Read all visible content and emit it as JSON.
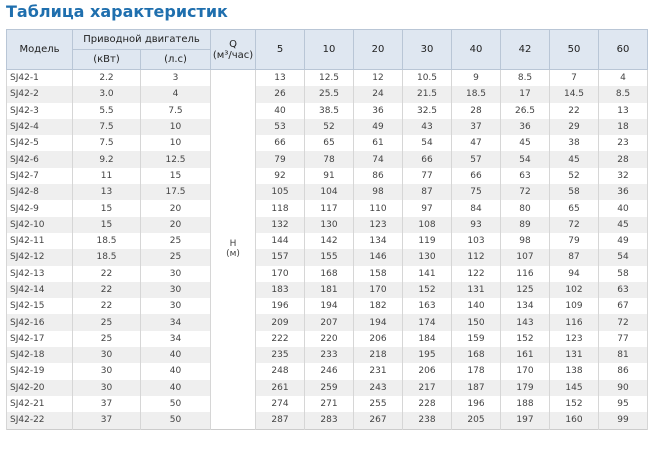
{
  "title": "Таблица характеристик",
  "table": {
    "header": {
      "model": "Модель",
      "motor": "Приводной двигатель",
      "kw": "(кВт)",
      "hp": "(л.с)",
      "q": "Q",
      "q_unit": "(м³/час)",
      "flows": [
        "5",
        "10",
        "20",
        "30",
        "40",
        "42",
        "50",
        "60"
      ]
    },
    "h_label": "H",
    "h_unit": "(м)",
    "rows": [
      [
        "SJ42-1",
        "2.2",
        "3",
        "13",
        "12.5",
        "12",
        "10.5",
        "9",
        "8.5",
        "7",
        "4"
      ],
      [
        "SJ42-2",
        "3.0",
        "4",
        "26",
        "25.5",
        "24",
        "21.5",
        "18.5",
        "17",
        "14.5",
        "8.5"
      ],
      [
        "SJ42-3",
        "5.5",
        "7.5",
        "40",
        "38.5",
        "36",
        "32.5",
        "28",
        "26.5",
        "22",
        "13"
      ],
      [
        "SJ42-4",
        "7.5",
        "10",
        "53",
        "52",
        "49",
        "43",
        "37",
        "36",
        "29",
        "18"
      ],
      [
        "SJ42-5",
        "7.5",
        "10",
        "66",
        "65",
        "61",
        "54",
        "47",
        "45",
        "38",
        "23"
      ],
      [
        "SJ42-6",
        "9.2",
        "12.5",
        "79",
        "78",
        "74",
        "66",
        "57",
        "54",
        "45",
        "28"
      ],
      [
        "SJ42-7",
        "11",
        "15",
        "92",
        "91",
        "86",
        "77",
        "66",
        "63",
        "52",
        "32"
      ],
      [
        "SJ42-8",
        "13",
        "17.5",
        "105",
        "104",
        "98",
        "87",
        "75",
        "72",
        "58",
        "36"
      ],
      [
        "SJ42-9",
        "15",
        "20",
        "118",
        "117",
        "110",
        "97",
        "84",
        "80",
        "65",
        "40"
      ],
      [
        "SJ42-10",
        "15",
        "20",
        "132",
        "130",
        "123",
        "108",
        "93",
        "89",
        "72",
        "45"
      ],
      [
        "SJ42-11",
        "18.5",
        "25",
        "144",
        "142",
        "134",
        "119",
        "103",
        "98",
        "79",
        "49"
      ],
      [
        "SJ42-12",
        "18.5",
        "25",
        "157",
        "155",
        "146",
        "130",
        "112",
        "107",
        "87",
        "54"
      ],
      [
        "SJ42-13",
        "22",
        "30",
        "170",
        "168",
        "158",
        "141",
        "122",
        "116",
        "94",
        "58"
      ],
      [
        "SJ42-14",
        "22",
        "30",
        "183",
        "181",
        "170",
        "152",
        "131",
        "125",
        "102",
        "63"
      ],
      [
        "SJ42-15",
        "22",
        "30",
        "196",
        "194",
        "182",
        "163",
        "140",
        "134",
        "109",
        "67"
      ],
      [
        "SJ42-16",
        "25",
        "34",
        "209",
        "207",
        "194",
        "174",
        "150",
        "143",
        "116",
        "72"
      ],
      [
        "SJ42-17",
        "25",
        "34",
        "222",
        "220",
        "206",
        "184",
        "159",
        "152",
        "123",
        "77"
      ],
      [
        "SJ42-18",
        "30",
        "40",
        "235",
        "233",
        "218",
        "195",
        "168",
        "161",
        "131",
        "81"
      ],
      [
        "SJ42-19",
        "30",
        "40",
        "248",
        "246",
        "231",
        "206",
        "178",
        "170",
        "138",
        "86"
      ],
      [
        "SJ42-20",
        "30",
        "40",
        "261",
        "259",
        "243",
        "217",
        "187",
        "179",
        "145",
        "90"
      ],
      [
        "SJ42-21",
        "37",
        "50",
        "274",
        "271",
        "255",
        "228",
        "196",
        "188",
        "152",
        "95"
      ],
      [
        "SJ42-22",
        "37",
        "50",
        "287",
        "283",
        "267",
        "238",
        "205",
        "197",
        "160",
        "99"
      ]
    ]
  }
}
